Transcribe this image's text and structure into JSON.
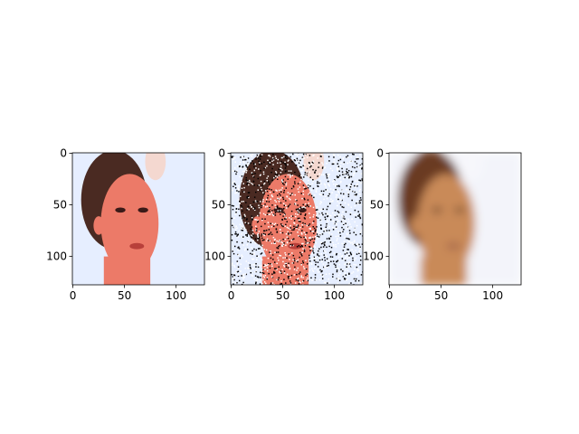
{
  "chart_data": [
    {
      "type": "image",
      "xlim": [
        -0.5,
        127.5
      ],
      "ylim": [
        127.5,
        -0.5
      ],
      "xticks": [
        0,
        50,
        100
      ],
      "yticks": [
        0,
        50,
        100
      ]
    },
    {
      "type": "image",
      "xlim": [
        -0.5,
        127.5
      ],
      "ylim": [
        127.5,
        -0.5
      ],
      "xticks": [
        0,
        50,
        100
      ],
      "yticks": [
        0,
        50,
        100
      ]
    },
    {
      "type": "image",
      "xlim": [
        -0.5,
        127.5
      ],
      "ylim": [
        127.5,
        -0.5
      ],
      "xticks": [
        0,
        50,
        100
      ],
      "yticks": [
        0,
        50,
        100
      ]
    }
  ]
}
